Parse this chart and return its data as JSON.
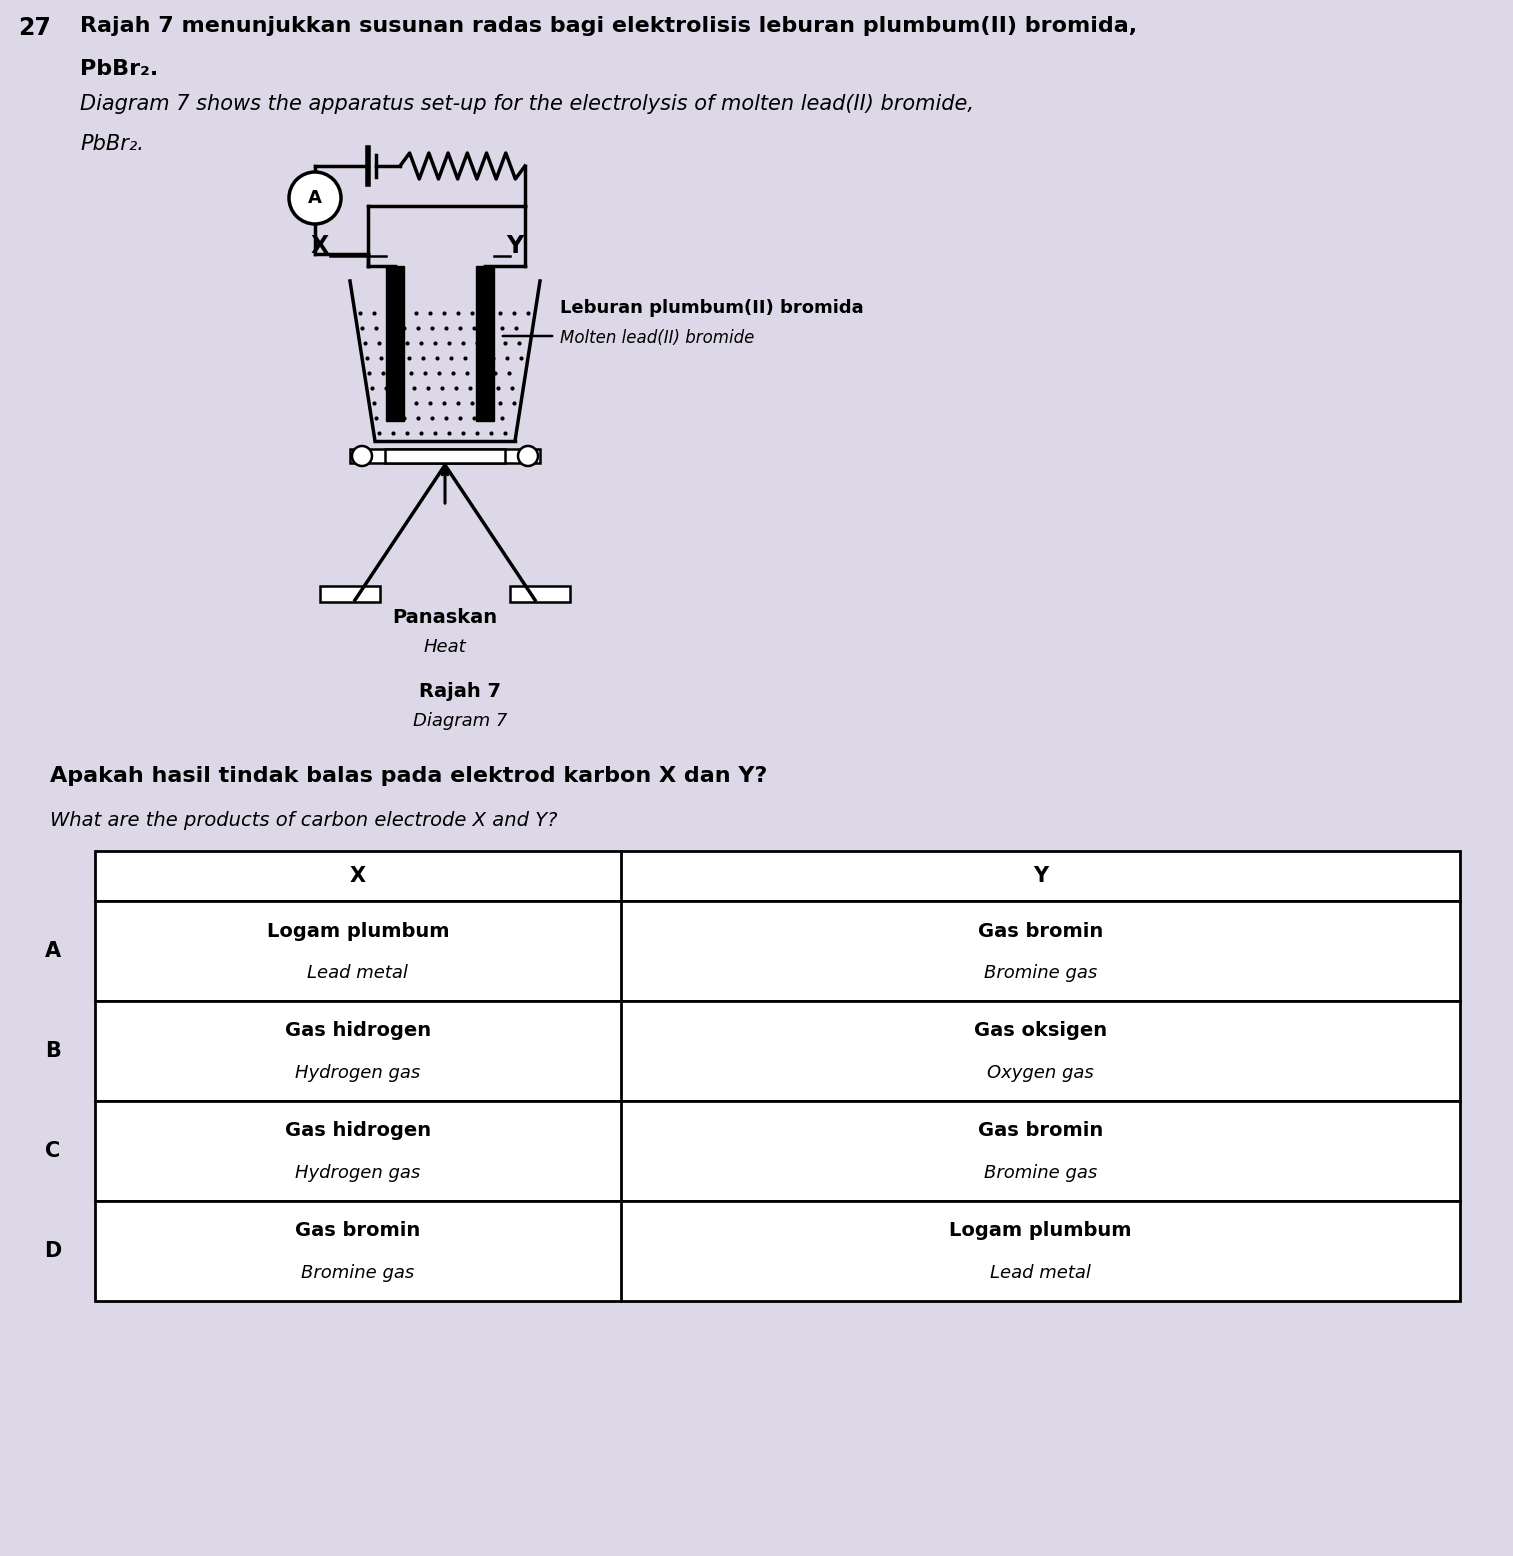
{
  "question_number": "27",
  "title_malay": "Rajah 7 menunjukkan susunan radas bagi elektrolisis leburan plumbum(II) bromida,",
  "title_malay2": "PbBr₂.",
  "title_english": "Diagram 7 shows the apparatus set-up for the electrolysis of molten lead(II) bromide,",
  "title_english2": "PbBr₂.",
  "diagram_label_malay": "Rajah 7",
  "diagram_label_english": "Diagram 7",
  "question_malay": "Apakah hasil tindak balas pada elektrod karbon X dan Y?",
  "question_english": "What are the products of carbon electrode X and Y?",
  "bg_color": "#ddd8e8",
  "table_header_X": "X",
  "table_header_Y": "Y",
  "rows": [
    {
      "label": "A",
      "x_line1": "Logam plumbum",
      "x_line2": "Lead metal",
      "y_line1": "Gas bromin",
      "y_line2": "Bromine gas"
    },
    {
      "label": "B",
      "x_line1": "Gas hidrogen",
      "x_line2": "Hydrogen gas",
      "y_line1": "Gas oksigen",
      "y_line2": "Oxygen gas"
    },
    {
      "label": "C",
      "x_line1": "Gas hidrogen",
      "x_line2": "Hydrogen gas",
      "y_line1": "Gas bromin",
      "y_line2": "Bromine gas"
    },
    {
      "label": "D",
      "x_line1": "Gas bromin",
      "x_line2": "Bromine gas",
      "y_line1": "Logam plumbum",
      "y_line2": "Lead metal"
    }
  ],
  "leburan_label": "Leburan plumbum(II) bromida",
  "molten_label": "Molten lead(II) bromide",
  "panaskan_label": "Panaskan",
  "heat_label": "Heat"
}
